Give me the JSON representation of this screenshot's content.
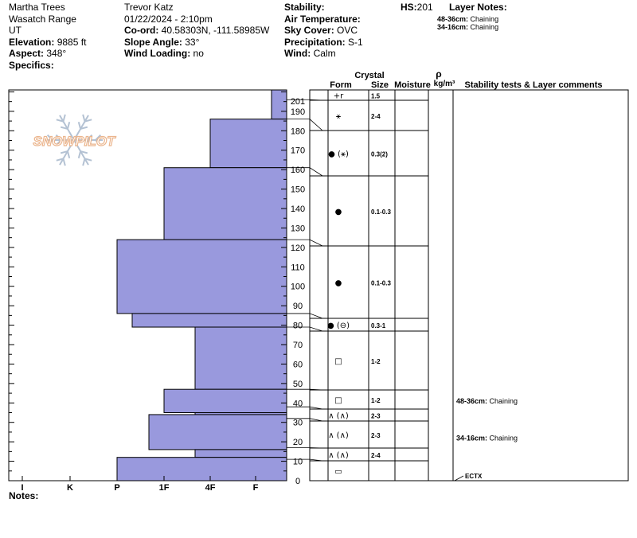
{
  "header": {
    "col1": {
      "site": "Martha Trees",
      "range": "Wasatch Range",
      "state": "UT",
      "elevation_label": "Elevation:",
      "elevation": "9885 ft",
      "aspect_label": "Aspect:",
      "aspect": "348°",
      "specifics_label": "Specifics:"
    },
    "col2": {
      "observer": "Trevor Katz",
      "datetime": "01/22/2024 - 2:10pm",
      "coord_label": "Co-ord:",
      "coord": "40.58303N, -111.58985W",
      "slope_label": "Slope Angle:",
      "slope": "33°",
      "wind_loading_label": "Wind Loading:",
      "wind_loading": "no"
    },
    "col3": {
      "stability_label": "Stability:",
      "air_temp_label": "Air Temperature:",
      "sky_label": "Sky Cover:",
      "sky": "OVC",
      "precip_label": "Precipitation:",
      "precip": "S-1",
      "wind_label": "Wind:",
      "wind": "Calm"
    },
    "hs_label": "HS:",
    "hs": "201",
    "layer_notes_label": "Layer Notes:",
    "layer_notes": [
      {
        "range": "48-36cm:",
        "text": "Chaining"
      },
      {
        "range": "34-16cm:",
        "text": "Chaining"
      }
    ]
  },
  "logo": {
    "text": "SNOWPILOT"
  },
  "columns": {
    "crystal": "Crystal",
    "form": "Form",
    "size": "Size",
    "moisture": "Moisture",
    "rho": "ρ",
    "density_unit": "kg/m³",
    "stability": "Stability tests & Layer comments"
  },
  "notes_label": "Notes:",
  "chart_data": {
    "type": "bar",
    "orientation": "horizontal",
    "title": "",
    "xlabel": "",
    "ylabel": "",
    "hardness_ticks": [
      "I",
      "K",
      "P",
      "1F",
      "4F",
      "F"
    ],
    "height_ticks": [
      201,
      190,
      180,
      170,
      160,
      150,
      140,
      130,
      120,
      110,
      100,
      90,
      80,
      70,
      60,
      50,
      40,
      30,
      20,
      10,
      0
    ],
    "ylim": [
      0,
      201
    ],
    "layers": [
      {
        "top": 201,
        "bottom": 186,
        "hardness": "F"
      },
      {
        "top": 186,
        "bottom": 161,
        "hardness": "4F"
      },
      {
        "top": 161,
        "bottom": 124,
        "hardness": "1F"
      },
      {
        "top": 124,
        "bottom": 86,
        "hardness": "P"
      },
      {
        "top": 86,
        "bottom": 79,
        "hardness": "P+"
      },
      {
        "top": 79,
        "bottom": 47,
        "hardness": "4F-"
      },
      {
        "top": 47,
        "bottom": 35,
        "hardness": "1F"
      },
      {
        "top": 35,
        "bottom": 34,
        "hardness": "4F-"
      },
      {
        "top": 34,
        "bottom": 16,
        "hardness": "1F-"
      },
      {
        "top": 16,
        "bottom": 12,
        "hardness": "4F-"
      },
      {
        "top": 12,
        "bottom": 0,
        "hardness": "P"
      }
    ],
    "crystal_layers": [
      {
        "top": 201,
        "bottom": 196,
        "form": "+r",
        "size": "1.5"
      },
      {
        "top": 196,
        "bottom": 186,
        "form": "⚹",
        "size": "2-4"
      },
      {
        "top": 186,
        "bottom": 161,
        "form": "● (⚹)",
        "size": "0.3(2)"
      },
      {
        "top": 161,
        "bottom": 124,
        "form": "●",
        "size": "0.1-0.3"
      },
      {
        "top": 124,
        "bottom": 86,
        "form": "●",
        "size": "0.1-0.3"
      },
      {
        "top": 86,
        "bottom": 79,
        "form": "● (⊖)",
        "size": "0.3-1"
      },
      {
        "top": 79,
        "bottom": 47,
        "form": "□",
        "size": "1-2"
      },
      {
        "top": 47,
        "bottom": 38,
        "form": "□",
        "size": "1-2"
      },
      {
        "top": 38,
        "bottom": 32,
        "form": "∧ (∧)",
        "size": "2-3"
      },
      {
        "top": 32,
        "bottom": 17,
        "form": "∧ (∧)",
        "size": "2-3"
      },
      {
        "top": 17,
        "bottom": 11,
        "form": "∧ (∧)",
        "size": "2-4"
      },
      {
        "top": 11,
        "bottom": 0,
        "form": "▭",
        "size": ""
      }
    ],
    "layer_comments": [
      {
        "height": 41,
        "range": "48-36cm:",
        "text": "Chaining"
      },
      {
        "height": 22,
        "range": "34-16cm:",
        "text": "Chaining"
      }
    ],
    "stability_tests": [
      {
        "height": 0,
        "text": "ECTX"
      }
    ],
    "bar_color": "#9999dd",
    "bar_stroke": "#000000"
  }
}
